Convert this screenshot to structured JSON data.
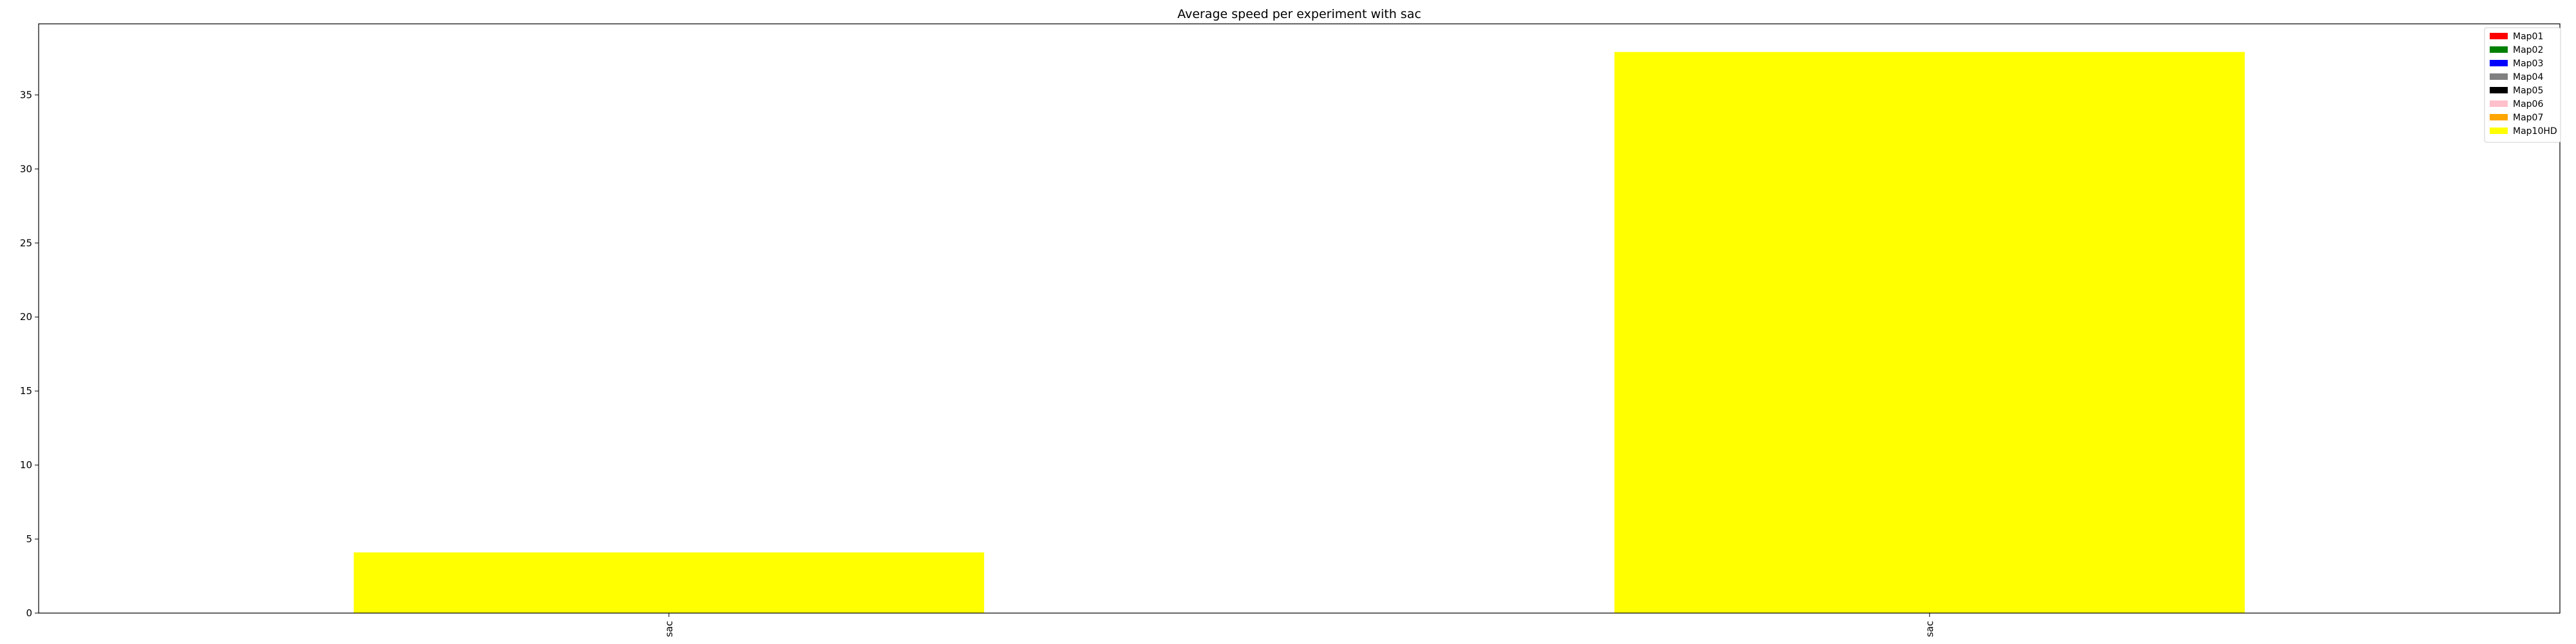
{
  "chart_data": {
    "type": "bar",
    "title": "Average speed per experiment with sac",
    "xlabel": "",
    "ylabel": "",
    "categories": [
      "sac",
      "sac"
    ],
    "series": [
      {
        "name": "Map01",
        "color": "#ff0000",
        "values": [
          0,
          0
        ]
      },
      {
        "name": "Map02",
        "color": "#008000",
        "values": [
          0,
          0
        ]
      },
      {
        "name": "Map03",
        "color": "#0000ff",
        "values": [
          0,
          0
        ]
      },
      {
        "name": "Map04",
        "color": "#808080",
        "values": [
          0,
          0
        ]
      },
      {
        "name": "Map05",
        "color": "#000000",
        "values": [
          0,
          0
        ]
      },
      {
        "name": "Map06",
        "color": "#ffc0cb",
        "values": [
          0,
          0
        ]
      },
      {
        "name": "Map07",
        "color": "#ffa500",
        "values": [
          0,
          0
        ]
      },
      {
        "name": "Map10HD",
        "color": "#ffff00",
        "values": [
          4.1,
          37.9
        ]
      }
    ],
    "ylim": [
      0,
      39.8
    ],
    "yticks": [
      0,
      5,
      10,
      15,
      20,
      25,
      30,
      35
    ],
    "grid": false,
    "legend_position": "top-right"
  }
}
